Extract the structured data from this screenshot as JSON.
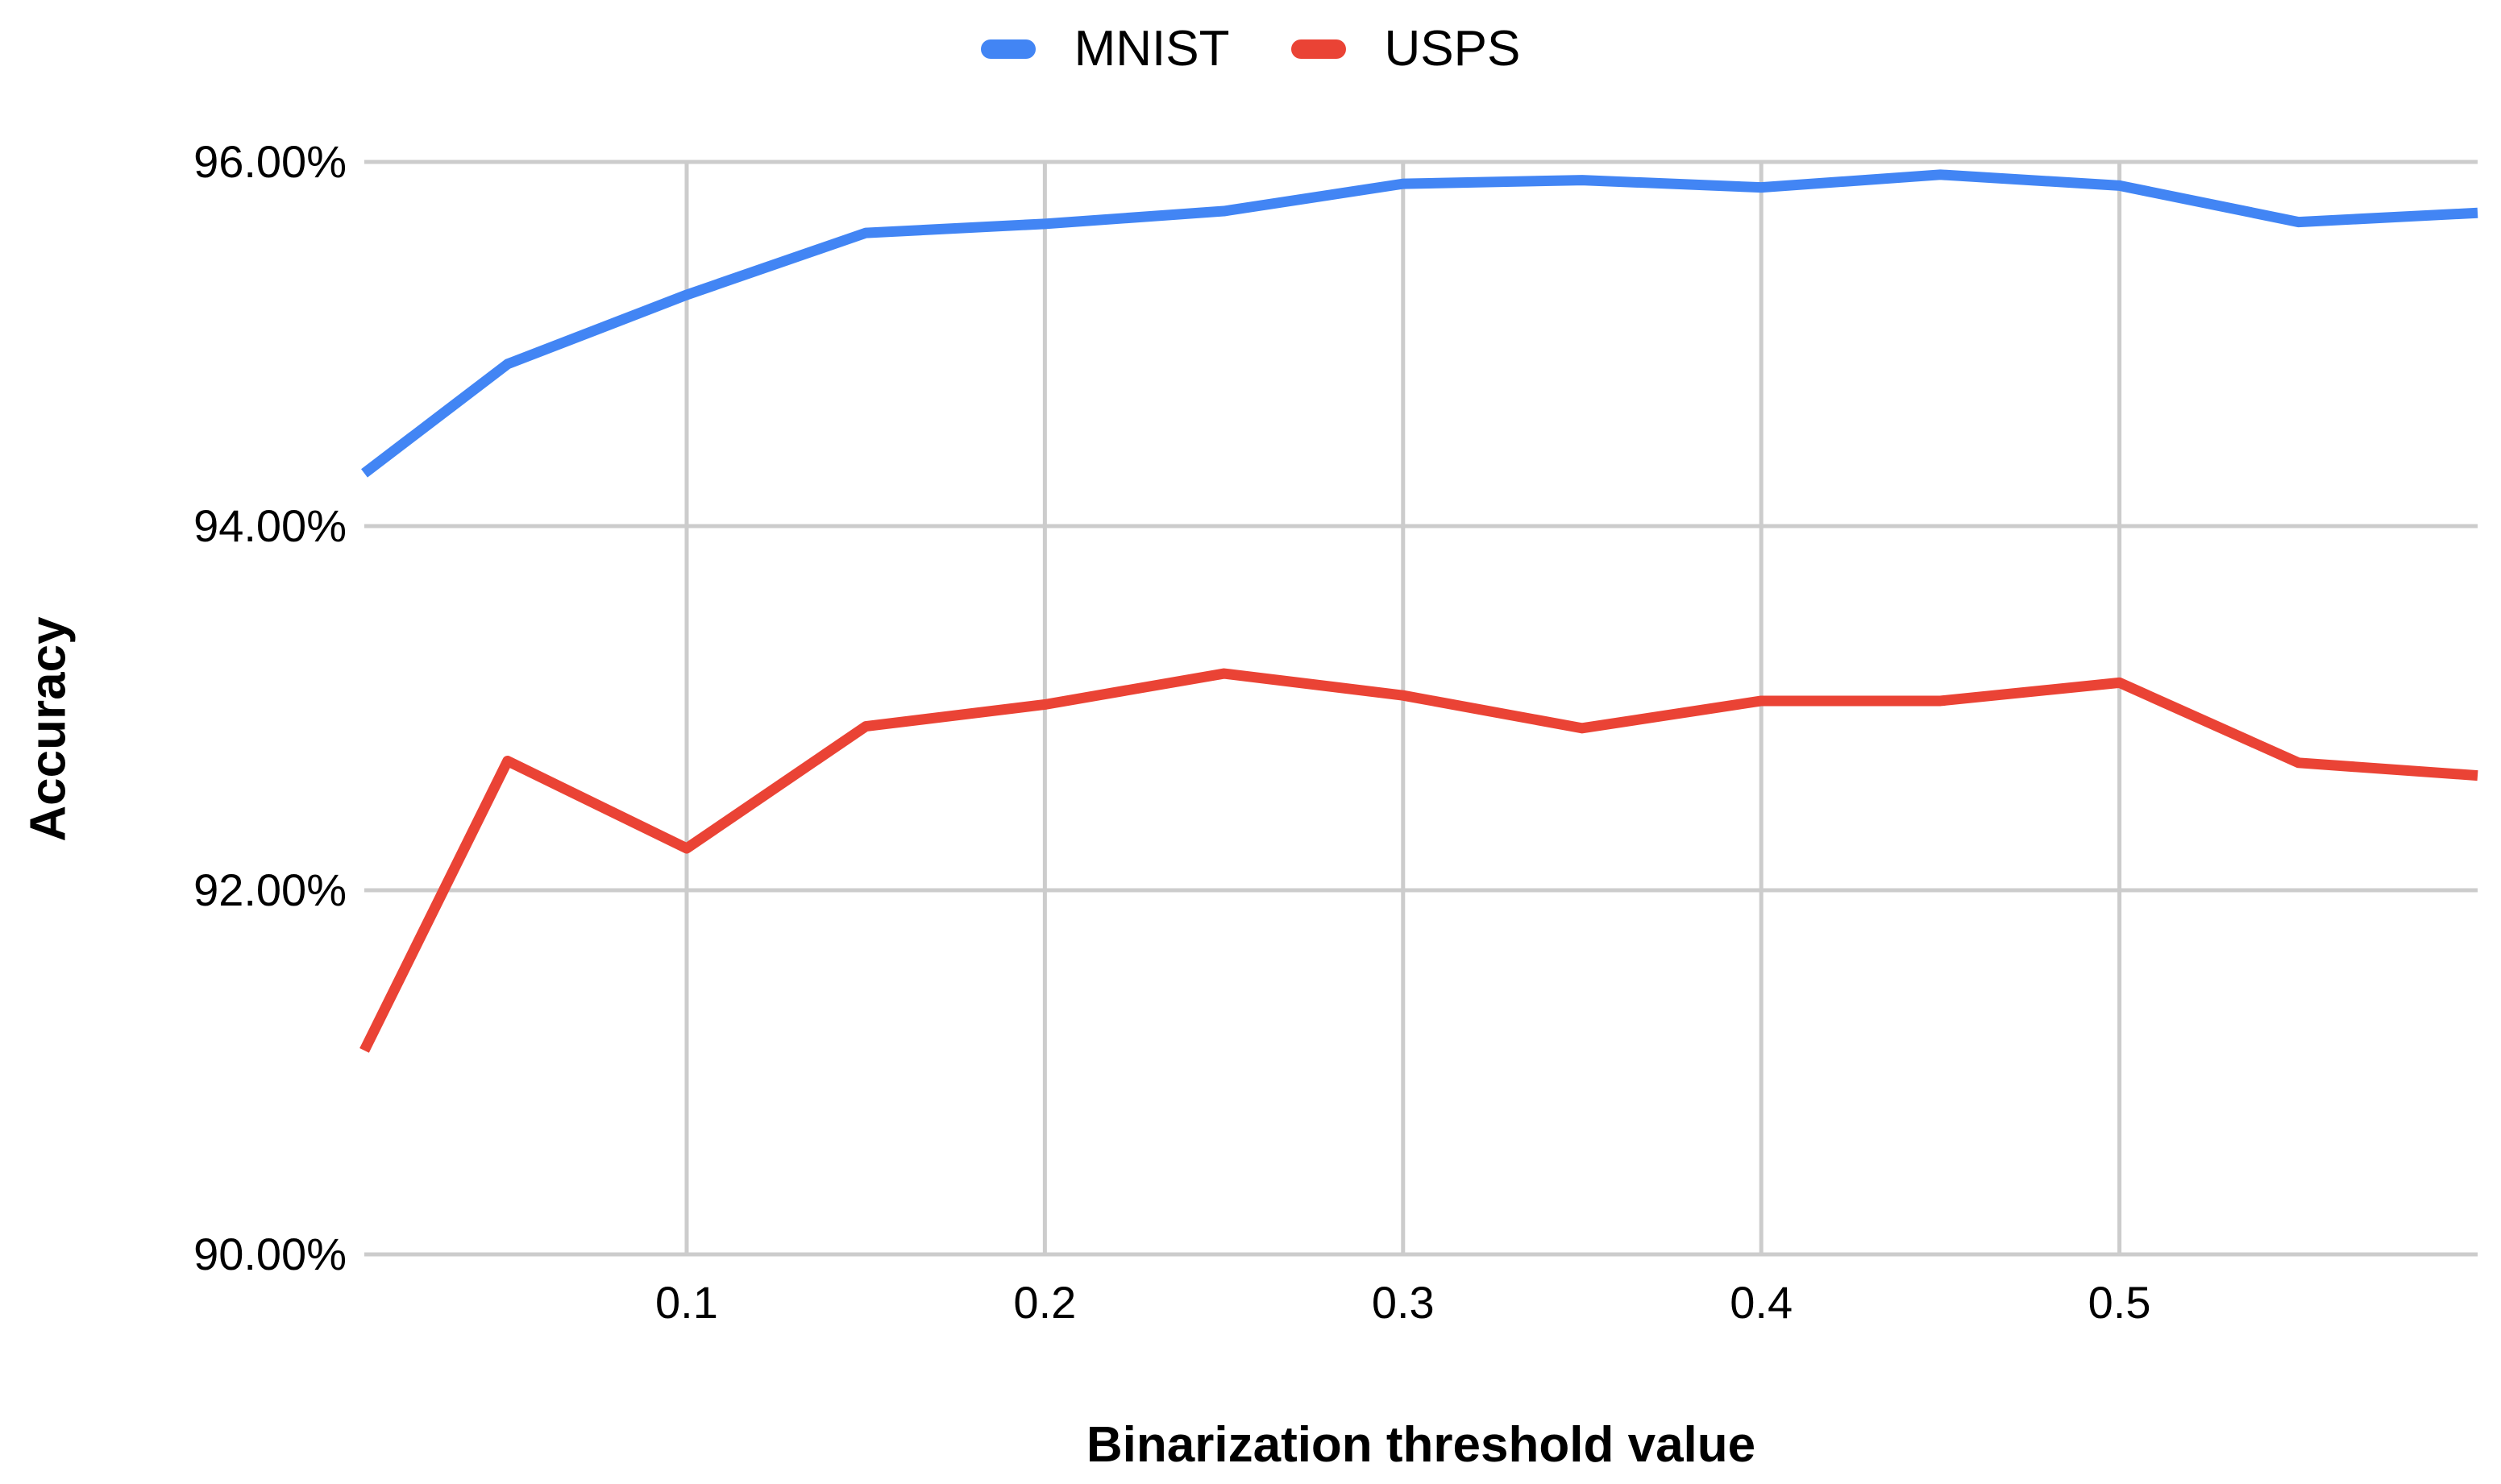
{
  "chart_data": {
    "type": "line",
    "title": "",
    "xlabel": "Binarization threshold value",
    "ylabel": "Accuracy",
    "x": [
      0.01,
      0.05,
      0.1,
      0.15,
      0.2,
      0.25,
      0.3,
      0.35,
      0.4,
      0.45,
      0.5,
      0.55,
      0.6
    ],
    "series": [
      {
        "name": "MNIST",
        "color": "#4285F4",
        "values": [
          94.29,
          94.89,
          95.27,
          95.61,
          95.66,
          95.73,
          95.88,
          95.9,
          95.86,
          95.93,
          95.87,
          95.67,
          95.72
        ]
      },
      {
        "name": "USPS",
        "color": "#EA4335",
        "values": [
          91.12,
          92.71,
          92.23,
          92.9,
          93.02,
          93.19,
          93.07,
          92.89,
          93.04,
          93.04,
          93.14,
          92.7,
          92.63
        ]
      }
    ],
    "xlim": [
      0.01,
      0.6
    ],
    "ylim": [
      90,
      96
    ],
    "y_ticks": [
      {
        "value": 96,
        "label": "96.00%"
      },
      {
        "value": 94,
        "label": "94.00%"
      },
      {
        "value": 92,
        "label": "92.00%"
      },
      {
        "value": 90,
        "label": "90.00%"
      }
    ],
    "x_ticks": [
      {
        "value": 0.1,
        "label": "0.1"
      },
      {
        "value": 0.2,
        "label": "0.2"
      },
      {
        "value": 0.3,
        "label": "0.3"
      },
      {
        "value": 0.4,
        "label": "0.4"
      },
      {
        "value": 0.5,
        "label": "0.5"
      }
    ],
    "grid": true,
    "gridline_color": "#CCCCCC",
    "legend_position": "top"
  }
}
